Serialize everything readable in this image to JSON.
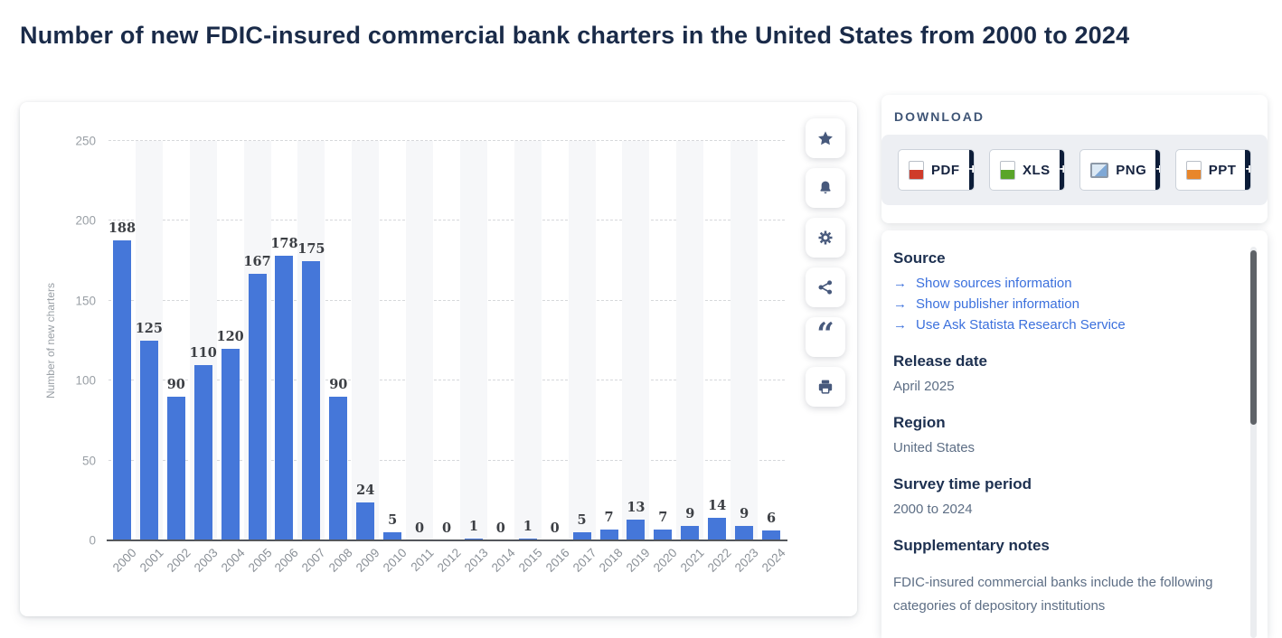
{
  "page": {
    "title": "Number of new FDIC-insured commercial bank charters in the United States from 2000 to 2024"
  },
  "chart_data": {
    "type": "bar",
    "categories": [
      "2000",
      "2001",
      "2002",
      "2003",
      "2004",
      "2005",
      "2006",
      "2007",
      "2008",
      "2009",
      "2010",
      "2011",
      "2012",
      "2013",
      "2014",
      "2015",
      "2016",
      "2017",
      "2018",
      "2019",
      "2020",
      "2021",
      "2022",
      "2023",
      "2024"
    ],
    "values": [
      188,
      125,
      90,
      110,
      120,
      167,
      178,
      175,
      90,
      24,
      5,
      0,
      0,
      1,
      0,
      1,
      0,
      5,
      7,
      13,
      7,
      9,
      14,
      9,
      6
    ],
    "title": "Number of new FDIC-insured commercial bank charters in the United States from 2000 to 2024",
    "xlabel": "",
    "ylabel": "Number of new charters",
    "ylim": [
      0,
      250
    ],
    "yticks": [
      0,
      50,
      100,
      150,
      200,
      250
    ],
    "grid": "horizontal-dashed",
    "legend": "none",
    "value_labels": "above-bars"
  },
  "toolbar": {
    "buttons": [
      {
        "name": "favorite",
        "icon": "star-icon"
      },
      {
        "name": "notifications",
        "icon": "bell-icon"
      },
      {
        "name": "settings",
        "icon": "gear-icon"
      },
      {
        "name": "share",
        "icon": "share-icon"
      },
      {
        "name": "cite",
        "icon": "quote-icon"
      },
      {
        "name": "print",
        "icon": "printer-icon"
      }
    ]
  },
  "download": {
    "label": "DOWNLOAD",
    "plus": "+",
    "formats": [
      {
        "label": "PDF",
        "icon": "pdf-file-icon"
      },
      {
        "label": "XLS",
        "icon": "xls-file-icon"
      },
      {
        "label": "PNG",
        "icon": "png-image-icon"
      },
      {
        "label": "PPT",
        "icon": "ppt-file-icon"
      }
    ]
  },
  "info": {
    "source_heading": "Source",
    "links": [
      "Show sources information",
      "Show publisher information",
      "Use Ask Statista Research Service"
    ],
    "link_arrow": "→",
    "release_date_heading": "Release date",
    "release_date": "April 2025",
    "region_heading": "Region",
    "region": "United States",
    "survey_heading": "Survey time period",
    "survey_period": "2000 to 2024",
    "notes_heading": "Supplementary notes",
    "notes_text": "FDIC-insured commercial banks include the following categories of depository institutions"
  },
  "colors": {
    "bar_blue": "#4577d9",
    "title_navy": "#1a2b49",
    "link_blue": "#3b70dd",
    "icon_slate": "#47597c",
    "plus_block_navy": "#0c1c38",
    "axis_gray": "#9aa0a6",
    "band_gray": "#f6f7f9"
  }
}
